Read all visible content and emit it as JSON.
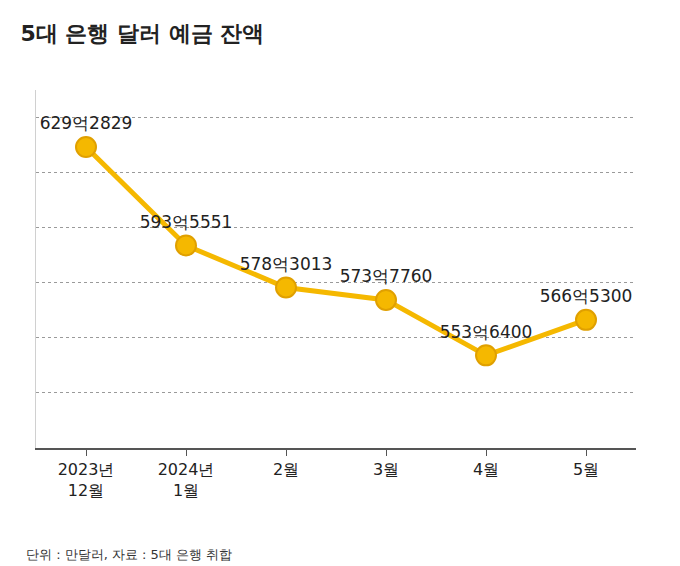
{
  "chart_data": {
    "type": "line",
    "title": "5대 은행 달러 예금 잔액",
    "source": "단위 : 만달러, 자료 : 5대 은행 취합",
    "categories": [
      "2023년 12월",
      "2024년 1월",
      "2월",
      "3월",
      "4월",
      "5월"
    ],
    "values": [
      6292829,
      5935551,
      5783013,
      5737760,
      5536400,
      5665300
    ],
    "value_labels": [
      "629억2829",
      "593억5551",
      "578억3013",
      "573억7760",
      "553억6400",
      "566억5300"
    ],
    "color": "#f5b800",
    "marker": "circle",
    "ylim": [
      5200000,
      6500000
    ],
    "yticks": [
      5200000,
      5400000,
      5600000,
      5800000,
      6000000,
      6200000,
      6400000
    ],
    "grid": true,
    "data_labels": true,
    "tick_labels": "x"
  }
}
